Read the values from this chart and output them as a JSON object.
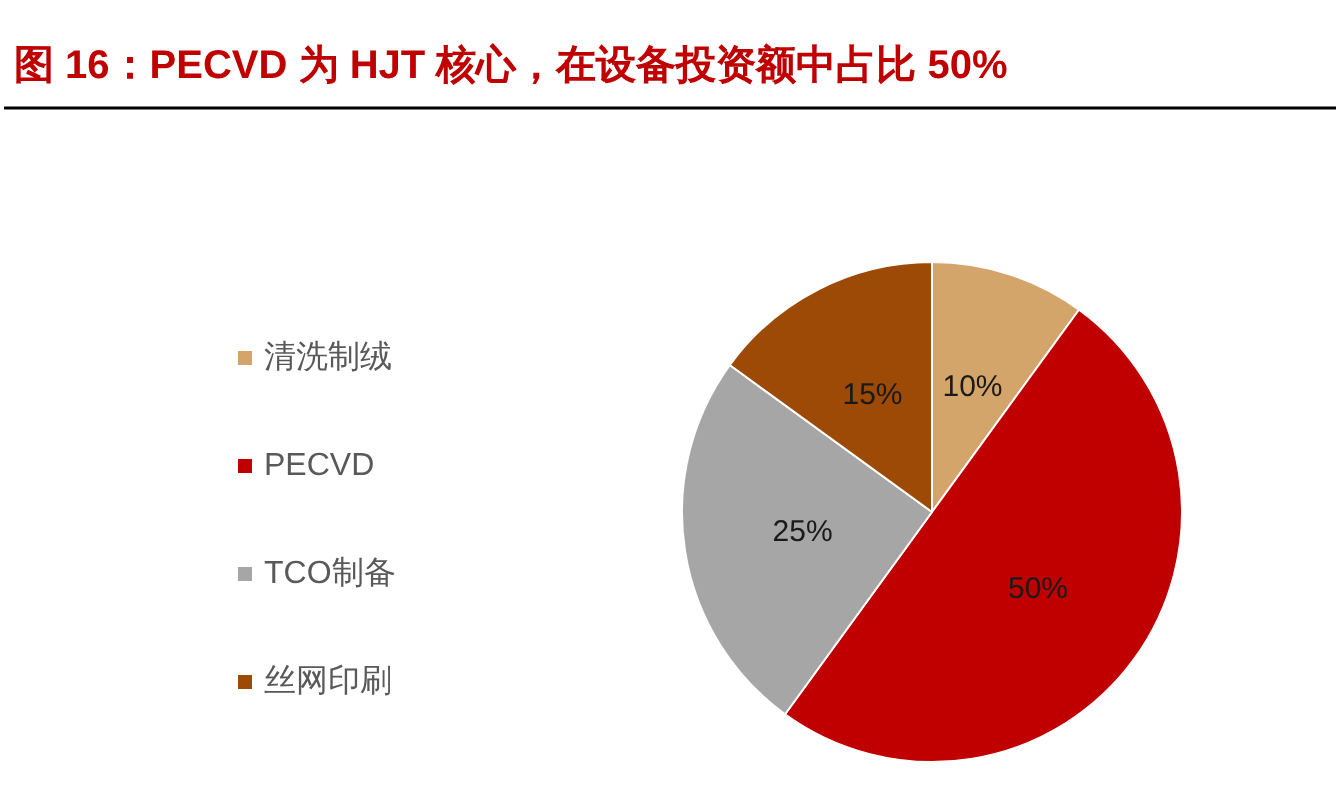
{
  "chart_data": {
    "type": "pie",
    "title": "图 16：PECVD 为 HJT 核心，在设备投资额中占比 50%",
    "categories": [
      "清洗制绒",
      "PECVD",
      "TCO制备",
      "丝网印刷"
    ],
    "values": [
      10,
      50,
      25,
      15
    ],
    "colors": [
      "#d4a56a",
      "#c00000",
      "#a6a6a6",
      "#9c4a06"
    ],
    "value_labels": [
      "10%",
      "50%",
      "25%",
      "15%"
    ],
    "legend": "left"
  }
}
